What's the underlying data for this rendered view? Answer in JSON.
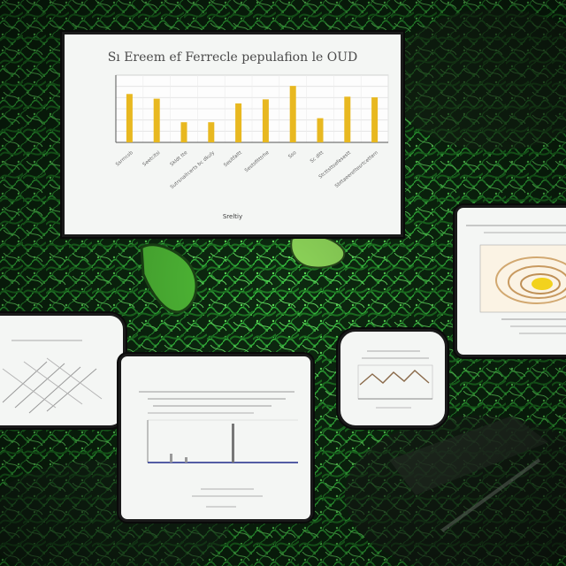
{
  "main_chart": {
    "title": "Sı Ereem ef Ferrecle pepulafion le OUD",
    "bar_color": "#e8b820",
    "categories": [
      "Ssrmcsb",
      "Seetcitsi",
      "Skldt tte",
      "Sutrsnaitcerts bc dkuly",
      "Sesitfaltt",
      "Sestsfitttrhe",
      "Sso",
      "Sc ditt",
      "Stcttsttsefesestt",
      "Sbttaeerettesrtcettem"
    ],
    "values": [
      0.72,
      0.65,
      0.3,
      0.3,
      0.58,
      0.64,
      0.84,
      0.36,
      0.68,
      0.67
    ],
    "xlabel": "Sreltiy"
  },
  "colors": {
    "moss_dark": "#0d2a10",
    "moss_bright": "#3fd44a",
    "panel_bg": "#f4f6f4"
  }
}
